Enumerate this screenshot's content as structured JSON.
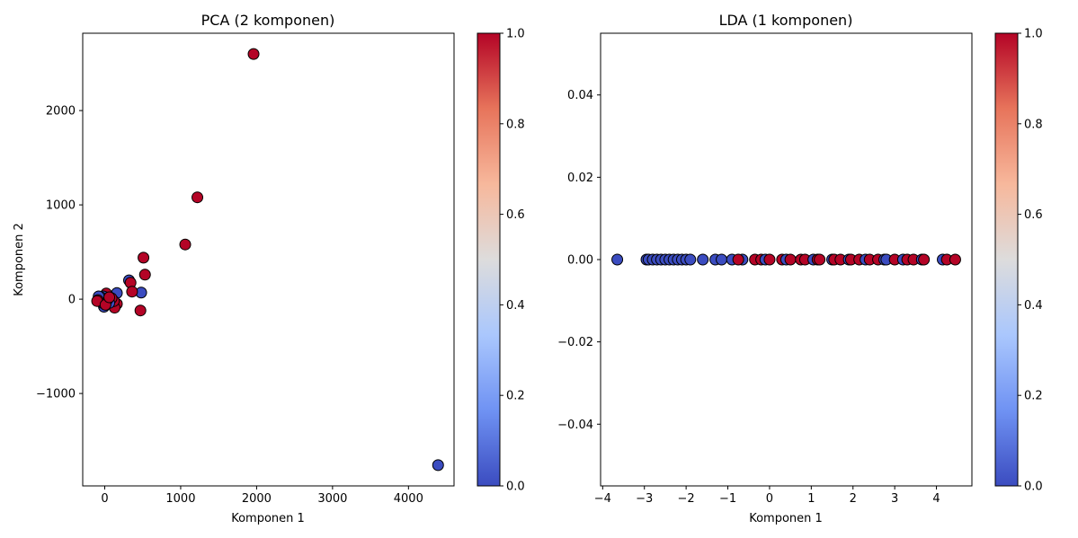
{
  "colormap": {
    "name": "coolwarm",
    "stops": [
      "#3b4cc0",
      "#6f92f3",
      "#aac7fd",
      "#dddcdc",
      "#f7b89c",
      "#e7745b",
      "#b40426"
    ]
  },
  "chart_data": [
    {
      "type": "scatter",
      "title": "PCA (2 komponen)",
      "xlabel": "Komponen 1",
      "ylabel": "Komponen 2",
      "xlim": [
        -290,
        4600
      ],
      "ylim": [
        -1980,
        2820
      ],
      "xticks": [
        0,
        1000,
        2000,
        3000,
        4000
      ],
      "yticks": [
        -1000,
        0,
        1000,
        2000
      ],
      "xtick_labels": [
        "0",
        "1000",
        "2000",
        "3000",
        "4000"
      ],
      "ytick_labels": [
        "−1000",
        "0",
        "1000",
        "2000"
      ],
      "colorbar": {
        "min": 0,
        "max": 1,
        "ticks": [
          "0.0",
          "0.2",
          "0.4",
          "0.6",
          "0.8",
          "1.0"
        ]
      },
      "points": [
        {
          "x": 1960,
          "y": 2600,
          "c": 1
        },
        {
          "x": 4390,
          "y": -1760,
          "c": 0
        },
        {
          "x": 1220,
          "y": 1080,
          "c": 1
        },
        {
          "x": 1060,
          "y": 580,
          "c": 1
        },
        {
          "x": 510,
          "y": 440,
          "c": 1
        },
        {
          "x": 530,
          "y": 260,
          "c": 1
        },
        {
          "x": 320,
          "y": 200,
          "c": 0
        },
        {
          "x": 340,
          "y": 175,
          "c": 1
        },
        {
          "x": 480,
          "y": 70,
          "c": 0
        },
        {
          "x": 360,
          "y": 80,
          "c": 1
        },
        {
          "x": 470,
          "y": -120,
          "c": 1
        },
        {
          "x": 160,
          "y": 65,
          "c": 0
        },
        {
          "x": 160,
          "y": -50,
          "c": 1
        },
        {
          "x": 130,
          "y": -90,
          "c": 1
        },
        {
          "x": 120,
          "y": -20,
          "c": 1
        },
        {
          "x": 90,
          "y": 10,
          "c": 1
        },
        {
          "x": 60,
          "y": -40,
          "c": 0
        },
        {
          "x": 40,
          "y": 40,
          "c": 1
        },
        {
          "x": 30,
          "y": -10,
          "c": 0
        },
        {
          "x": 20,
          "y": 60,
          "c": 1
        },
        {
          "x": 10,
          "y": 20,
          "c": 0
        },
        {
          "x": 0,
          "y": -30,
          "c": 0
        },
        {
          "x": -10,
          "y": -80,
          "c": 0
        },
        {
          "x": -20,
          "y": 30,
          "c": 0
        },
        {
          "x": -30,
          "y": -40,
          "c": 0
        },
        {
          "x": -40,
          "y": 0,
          "c": 0
        },
        {
          "x": -50,
          "y": 20,
          "c": 0
        },
        {
          "x": -60,
          "y": -20,
          "c": 0
        },
        {
          "x": -70,
          "y": 10,
          "c": 0
        },
        {
          "x": -80,
          "y": 30,
          "c": 0
        },
        {
          "x": -90,
          "y": -10,
          "c": 1
        },
        {
          "x": -100,
          "y": -20,
          "c": 1
        },
        {
          "x": 10,
          "y": -60,
          "c": 1
        },
        {
          "x": 60,
          "y": 20,
          "c": 1
        }
      ]
    },
    {
      "type": "scatter",
      "title": "LDA (1 komponen)",
      "xlabel": "Komponen 1",
      "ylabel": "",
      "xlim": [
        -4.05,
        4.85
      ],
      "ylim": [
        -0.055,
        0.055
      ],
      "xticks": [
        -4,
        -3,
        -2,
        -1,
        0,
        1,
        2,
        3,
        4
      ],
      "yticks": [
        -0.04,
        -0.02,
        0,
        0.02,
        0.04
      ],
      "xtick_labels": [
        "−4",
        "−3",
        "−2",
        "−1",
        "0",
        "1",
        "2",
        "3",
        "4"
      ],
      "ytick_labels": [
        "−0.04",
        "−0.02",
        "0.00",
        "0.02",
        "0.04"
      ],
      "colorbar": {
        "min": 0,
        "max": 1,
        "ticks": [
          "0.0",
          "0.2",
          "0.4",
          "0.6",
          "0.8",
          "1.0"
        ]
      },
      "points": [
        {
          "x": -3.65,
          "y": 0,
          "c": 0
        },
        {
          "x": -2.95,
          "y": 0,
          "c": 0
        },
        {
          "x": -2.9,
          "y": 0,
          "c": 0
        },
        {
          "x": -2.8,
          "y": 0,
          "c": 0
        },
        {
          "x": -2.7,
          "y": 0,
          "c": 0
        },
        {
          "x": -2.6,
          "y": 0,
          "c": 0
        },
        {
          "x": -2.5,
          "y": 0,
          "c": 0
        },
        {
          "x": -2.4,
          "y": 0,
          "c": 0
        },
        {
          "x": -2.3,
          "y": 0,
          "c": 0
        },
        {
          "x": -2.2,
          "y": 0,
          "c": 0
        },
        {
          "x": -2.1,
          "y": 0,
          "c": 0
        },
        {
          "x": -2.0,
          "y": 0,
          "c": 0
        },
        {
          "x": -1.9,
          "y": 0,
          "c": 0
        },
        {
          "x": -1.6,
          "y": 0,
          "c": 0
        },
        {
          "x": -1.3,
          "y": 0,
          "c": 0
        },
        {
          "x": -1.15,
          "y": 0,
          "c": 0
        },
        {
          "x": -0.9,
          "y": 0,
          "c": 0
        },
        {
          "x": -0.65,
          "y": 0,
          "c": 0
        },
        {
          "x": -0.75,
          "y": 0,
          "c": 1
        },
        {
          "x": -0.35,
          "y": 0,
          "c": 1
        },
        {
          "x": -0.2,
          "y": 0,
          "c": 1
        },
        {
          "x": -0.1,
          "y": 0,
          "c": 0
        },
        {
          "x": 0.0,
          "y": 0,
          "c": 1
        },
        {
          "x": 0.3,
          "y": 0,
          "c": 1
        },
        {
          "x": 0.4,
          "y": 0,
          "c": 0
        },
        {
          "x": 0.5,
          "y": 0,
          "c": 1
        },
        {
          "x": 0.75,
          "y": 0,
          "c": 1
        },
        {
          "x": 0.85,
          "y": 0,
          "c": 1
        },
        {
          "x": 1.05,
          "y": 0,
          "c": 0
        },
        {
          "x": 1.15,
          "y": 0,
          "c": 1
        },
        {
          "x": 1.2,
          "y": 0,
          "c": 1
        },
        {
          "x": 1.5,
          "y": 0,
          "c": 0
        },
        {
          "x": 1.55,
          "y": 0,
          "c": 1
        },
        {
          "x": 1.7,
          "y": 0,
          "c": 1
        },
        {
          "x": 1.9,
          "y": 0,
          "c": 0
        },
        {
          "x": 1.95,
          "y": 0,
          "c": 1
        },
        {
          "x": 2.15,
          "y": 0,
          "c": 1
        },
        {
          "x": 2.3,
          "y": 0,
          "c": 0
        },
        {
          "x": 2.4,
          "y": 0,
          "c": 1
        },
        {
          "x": 2.6,
          "y": 0,
          "c": 1
        },
        {
          "x": 2.75,
          "y": 0,
          "c": 0
        },
        {
          "x": 2.8,
          "y": 0,
          "c": 0
        },
        {
          "x": 3.0,
          "y": 0,
          "c": 1
        },
        {
          "x": 3.2,
          "y": 0,
          "c": 0
        },
        {
          "x": 3.3,
          "y": 0,
          "c": 1
        },
        {
          "x": 3.45,
          "y": 0,
          "c": 1
        },
        {
          "x": 3.65,
          "y": 0,
          "c": 0
        },
        {
          "x": 3.7,
          "y": 0,
          "c": 1
        },
        {
          "x": 4.15,
          "y": 0,
          "c": 0
        },
        {
          "x": 4.25,
          "y": 0,
          "c": 1
        },
        {
          "x": 4.45,
          "y": 0,
          "c": 1
        }
      ]
    }
  ]
}
